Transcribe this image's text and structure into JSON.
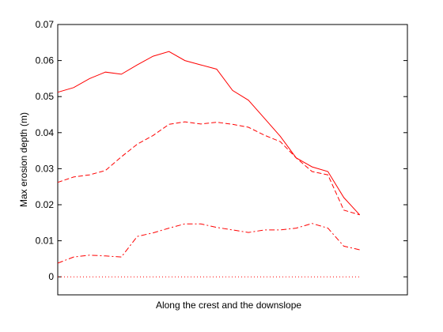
{
  "chart_data": {
    "type": "line",
    "title": "",
    "xlabel": "Along the crest and the downslope",
    "ylabel": "Max erosion depth  (m)",
    "ylim": [
      -0.005,
      0.07
    ],
    "xlim": [
      0,
      22
    ],
    "yticks": [
      "0",
      "0.01",
      "0.02",
      "0.03",
      "0.04",
      "0.05",
      "0.06",
      "0.07"
    ],
    "ytick_values": [
      0,
      0.01,
      0.02,
      0.03,
      0.04,
      0.05,
      0.06,
      0.07
    ],
    "grid": false,
    "legend": "none",
    "color": "#ff0000",
    "x": [
      0,
      1,
      2,
      3,
      4,
      5,
      6,
      7,
      8,
      9,
      10,
      11,
      12,
      13,
      14,
      15,
      16,
      17,
      18,
      19,
      20,
      21,
      22
    ],
    "series": [
      {
        "style": "solid",
        "points": [
          [
            0,
            0.0512
          ],
          [
            1,
            0.0525
          ],
          [
            2,
            0.055
          ],
          [
            3,
            0.0568
          ],
          [
            4,
            0.0562
          ],
          [
            5,
            0.0588
          ],
          [
            6,
            0.0612
          ],
          [
            7,
            0.0625
          ],
          [
            8,
            0.06
          ],
          [
            9,
            0.0588
          ],
          [
            10,
            0.0576
          ],
          [
            11,
            0.0517
          ],
          [
            12,
            0.049
          ],
          [
            13,
            0.044
          ],
          [
            14,
            0.039
          ],
          [
            15,
            0.033
          ],
          [
            16,
            0.0305
          ],
          [
            17,
            0.0292
          ],
          [
            18,
            0.022
          ],
          [
            19,
            0.0172
          ]
        ]
      },
      {
        "style": "dashed",
        "points": [
          [
            0,
            0.0262
          ],
          [
            1,
            0.0277
          ],
          [
            2,
            0.0283
          ],
          [
            3,
            0.0295
          ],
          [
            4,
            0.0333
          ],
          [
            5,
            0.0368
          ],
          [
            6,
            0.0392
          ],
          [
            7,
            0.0423
          ],
          [
            8,
            0.043
          ],
          [
            9,
            0.0424
          ],
          [
            10,
            0.0429
          ],
          [
            11,
            0.0423
          ],
          [
            12,
            0.0415
          ],
          [
            13,
            0.0393
          ],
          [
            14,
            0.0375
          ],
          [
            15,
            0.033
          ],
          [
            16,
            0.0292
          ],
          [
            17,
            0.0283
          ],
          [
            18,
            0.0185
          ],
          [
            19,
            0.0172
          ]
        ]
      },
      {
        "style": "dash-dot",
        "points": [
          [
            0,
            0.0038
          ],
          [
            1,
            0.0055
          ],
          [
            2,
            0.006
          ],
          [
            3,
            0.0058
          ],
          [
            4,
            0.0055
          ],
          [
            5,
            0.0112
          ],
          [
            6,
            0.0122
          ],
          [
            7,
            0.0135
          ],
          [
            8,
            0.0147
          ],
          [
            9,
            0.0147
          ],
          [
            10,
            0.0137
          ],
          [
            11,
            0.013
          ],
          [
            12,
            0.0123
          ],
          [
            13,
            0.013
          ],
          [
            14,
            0.013
          ],
          [
            15,
            0.0135
          ],
          [
            16,
            0.0148
          ],
          [
            17,
            0.0135
          ],
          [
            18,
            0.0085
          ],
          [
            19,
            0.0075
          ]
        ]
      },
      {
        "style": "dotted",
        "points": [
          [
            0,
            0
          ],
          [
            19,
            0
          ]
        ]
      }
    ]
  }
}
